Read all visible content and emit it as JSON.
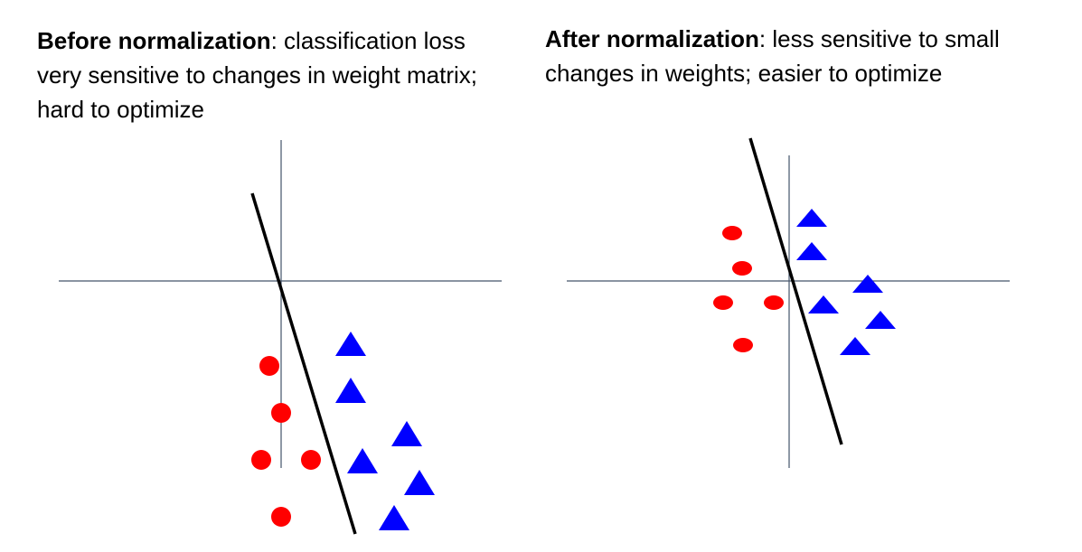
{
  "before": {
    "heading": "Before normalization",
    "text": ": classification loss very sensitive to changes in weight matrix; hard to optimize"
  },
  "after": {
    "heading": "After normalization",
    "text": ": less sensitive to small changes in weights; easier to optimize"
  },
  "colors": {
    "class_a": "#ff0000",
    "class_b": "#0000ff",
    "axes": "#44546a",
    "boundary": "#000000"
  },
  "marker_names": {
    "class_a": "red-circle",
    "class_b": "blue-triangle"
  }
}
